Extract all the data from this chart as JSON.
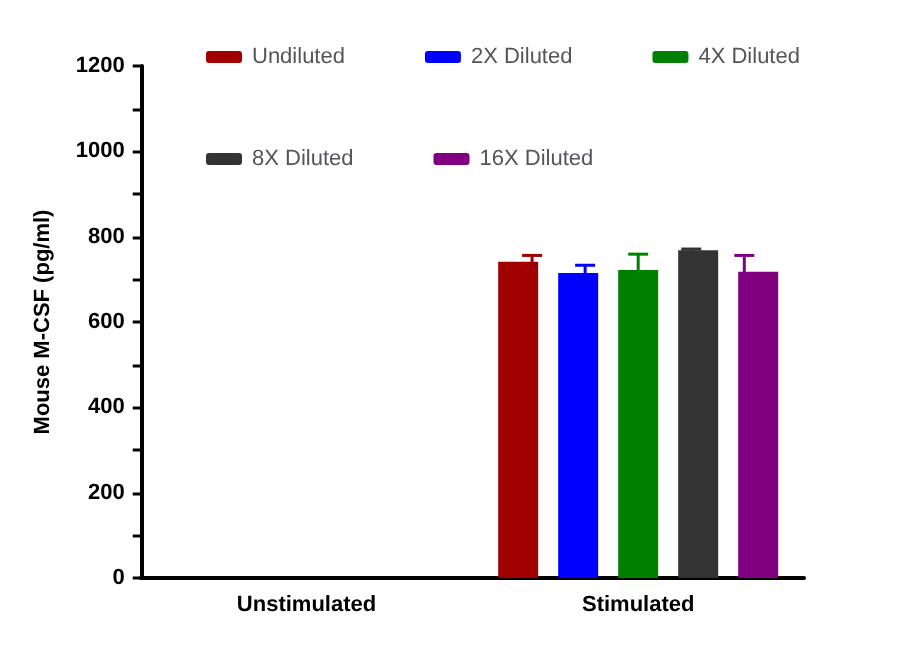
{
  "chart_data": {
    "type": "bar",
    "ylabel": "Mouse M-CSF (pg/ml)",
    "categories": [
      "Unstimulated",
      "Stimulated"
    ],
    "series": [
      {
        "name": "Undiluted",
        "color": "#a00000",
        "values": [
          0,
          741
        ],
        "errors": [
          null,
          15
        ]
      },
      {
        "name": "2X Diluted",
        "color": "#0000ff",
        "values": [
          0,
          715
        ],
        "errors": [
          null,
          18
        ]
      },
      {
        "name": "4X Diluted",
        "color": "#008000",
        "values": [
          0,
          722
        ],
        "errors": [
          null,
          37
        ]
      },
      {
        "name": "8X Diluted",
        "color": "#333333",
        "values": [
          0,
          768
        ],
        "errors": [
          null,
          3
        ]
      },
      {
        "name": "16X Diluted",
        "color": "#800080",
        "values": [
          0,
          718
        ],
        "errors": [
          null,
          38
        ]
      }
    ],
    "ylim": [
      0,
      1200
    ],
    "yticks": [
      0,
      {
        "value": 100,
        "label": null
      },
      200,
      {
        "value": 300,
        "label": null
      },
      400,
      {
        "value": 500,
        "label": null
      },
      600,
      {
        "value": 700,
        "label": null
      },
      800,
      {
        "value": 900,
        "label": null
      },
      1000,
      {
        "value": 1100,
        "label": null
      },
      1200
    ],
    "grid": false,
    "legend": "top"
  }
}
